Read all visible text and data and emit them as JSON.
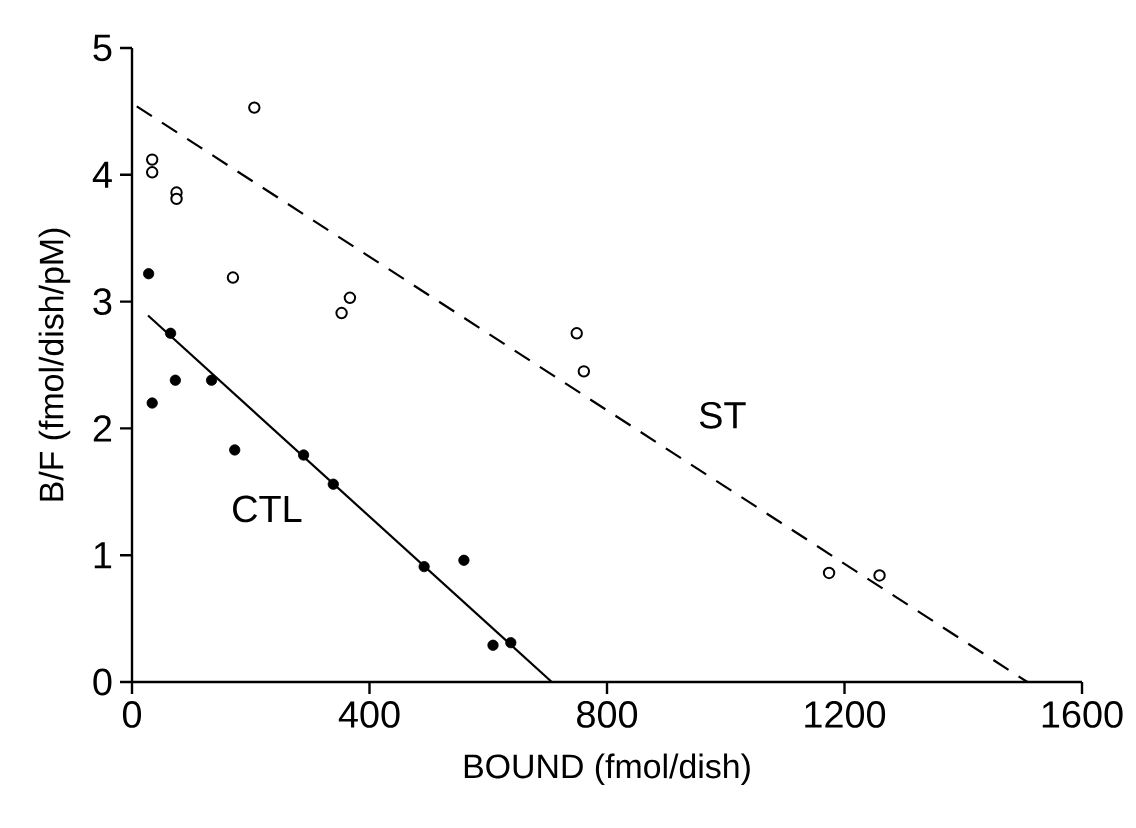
{
  "chart_data": {
    "type": "scatter",
    "xlabel": "BOUND (fmol/dish)",
    "ylabel": "B/F (fmol/dish/pM)",
    "xlim": [
      0,
      1600
    ],
    "ylim": [
      0,
      5
    ],
    "xticks": [
      0,
      400,
      800,
      1200,
      1600
    ],
    "yticks": [
      0,
      1,
      2,
      3,
      4,
      5
    ],
    "grid": false,
    "series": [
      {
        "marker": "circle",
        "color": "#000000",
        "x": [
          206,
          34,
          34,
          75,
          75,
          170,
          353,
          367,
          749,
          761,
          1174,
          1259
        ],
        "values": [
          4.53,
          4.12,
          4.02,
          3.86,
          3.81,
          3.19,
          2.91,
          3.03,
          2.75,
          2.45,
          0.86,
          0.84
        ]
      },
      {
        "marker": "circle",
        "color": "#000000",
        "x": [
          28,
          34,
          65,
          73,
          134,
          173,
          289,
          339,
          492,
          559,
          608,
          638
        ],
        "values": [
          3.22,
          2.2,
          2.75,
          2.38,
          2.38,
          1.83,
          1.79,
          1.56,
          0.91,
          0.96,
          0.29,
          0.31
        ]
      },
      {
        "type": "line",
        "name": "ST",
        "marker": "none",
        "line_style": "dashed",
        "color": "#000000",
        "x": [
          8,
          1508
        ],
        "values": [
          4.54,
          0
        ]
      },
      {
        "type": "line",
        "name": "CTL",
        "marker": "none",
        "line_style": "solid",
        "color": "#000000",
        "x": [
          27,
          707
        ],
        "values": [
          2.89,
          0
        ]
      }
    ]
  }
}
